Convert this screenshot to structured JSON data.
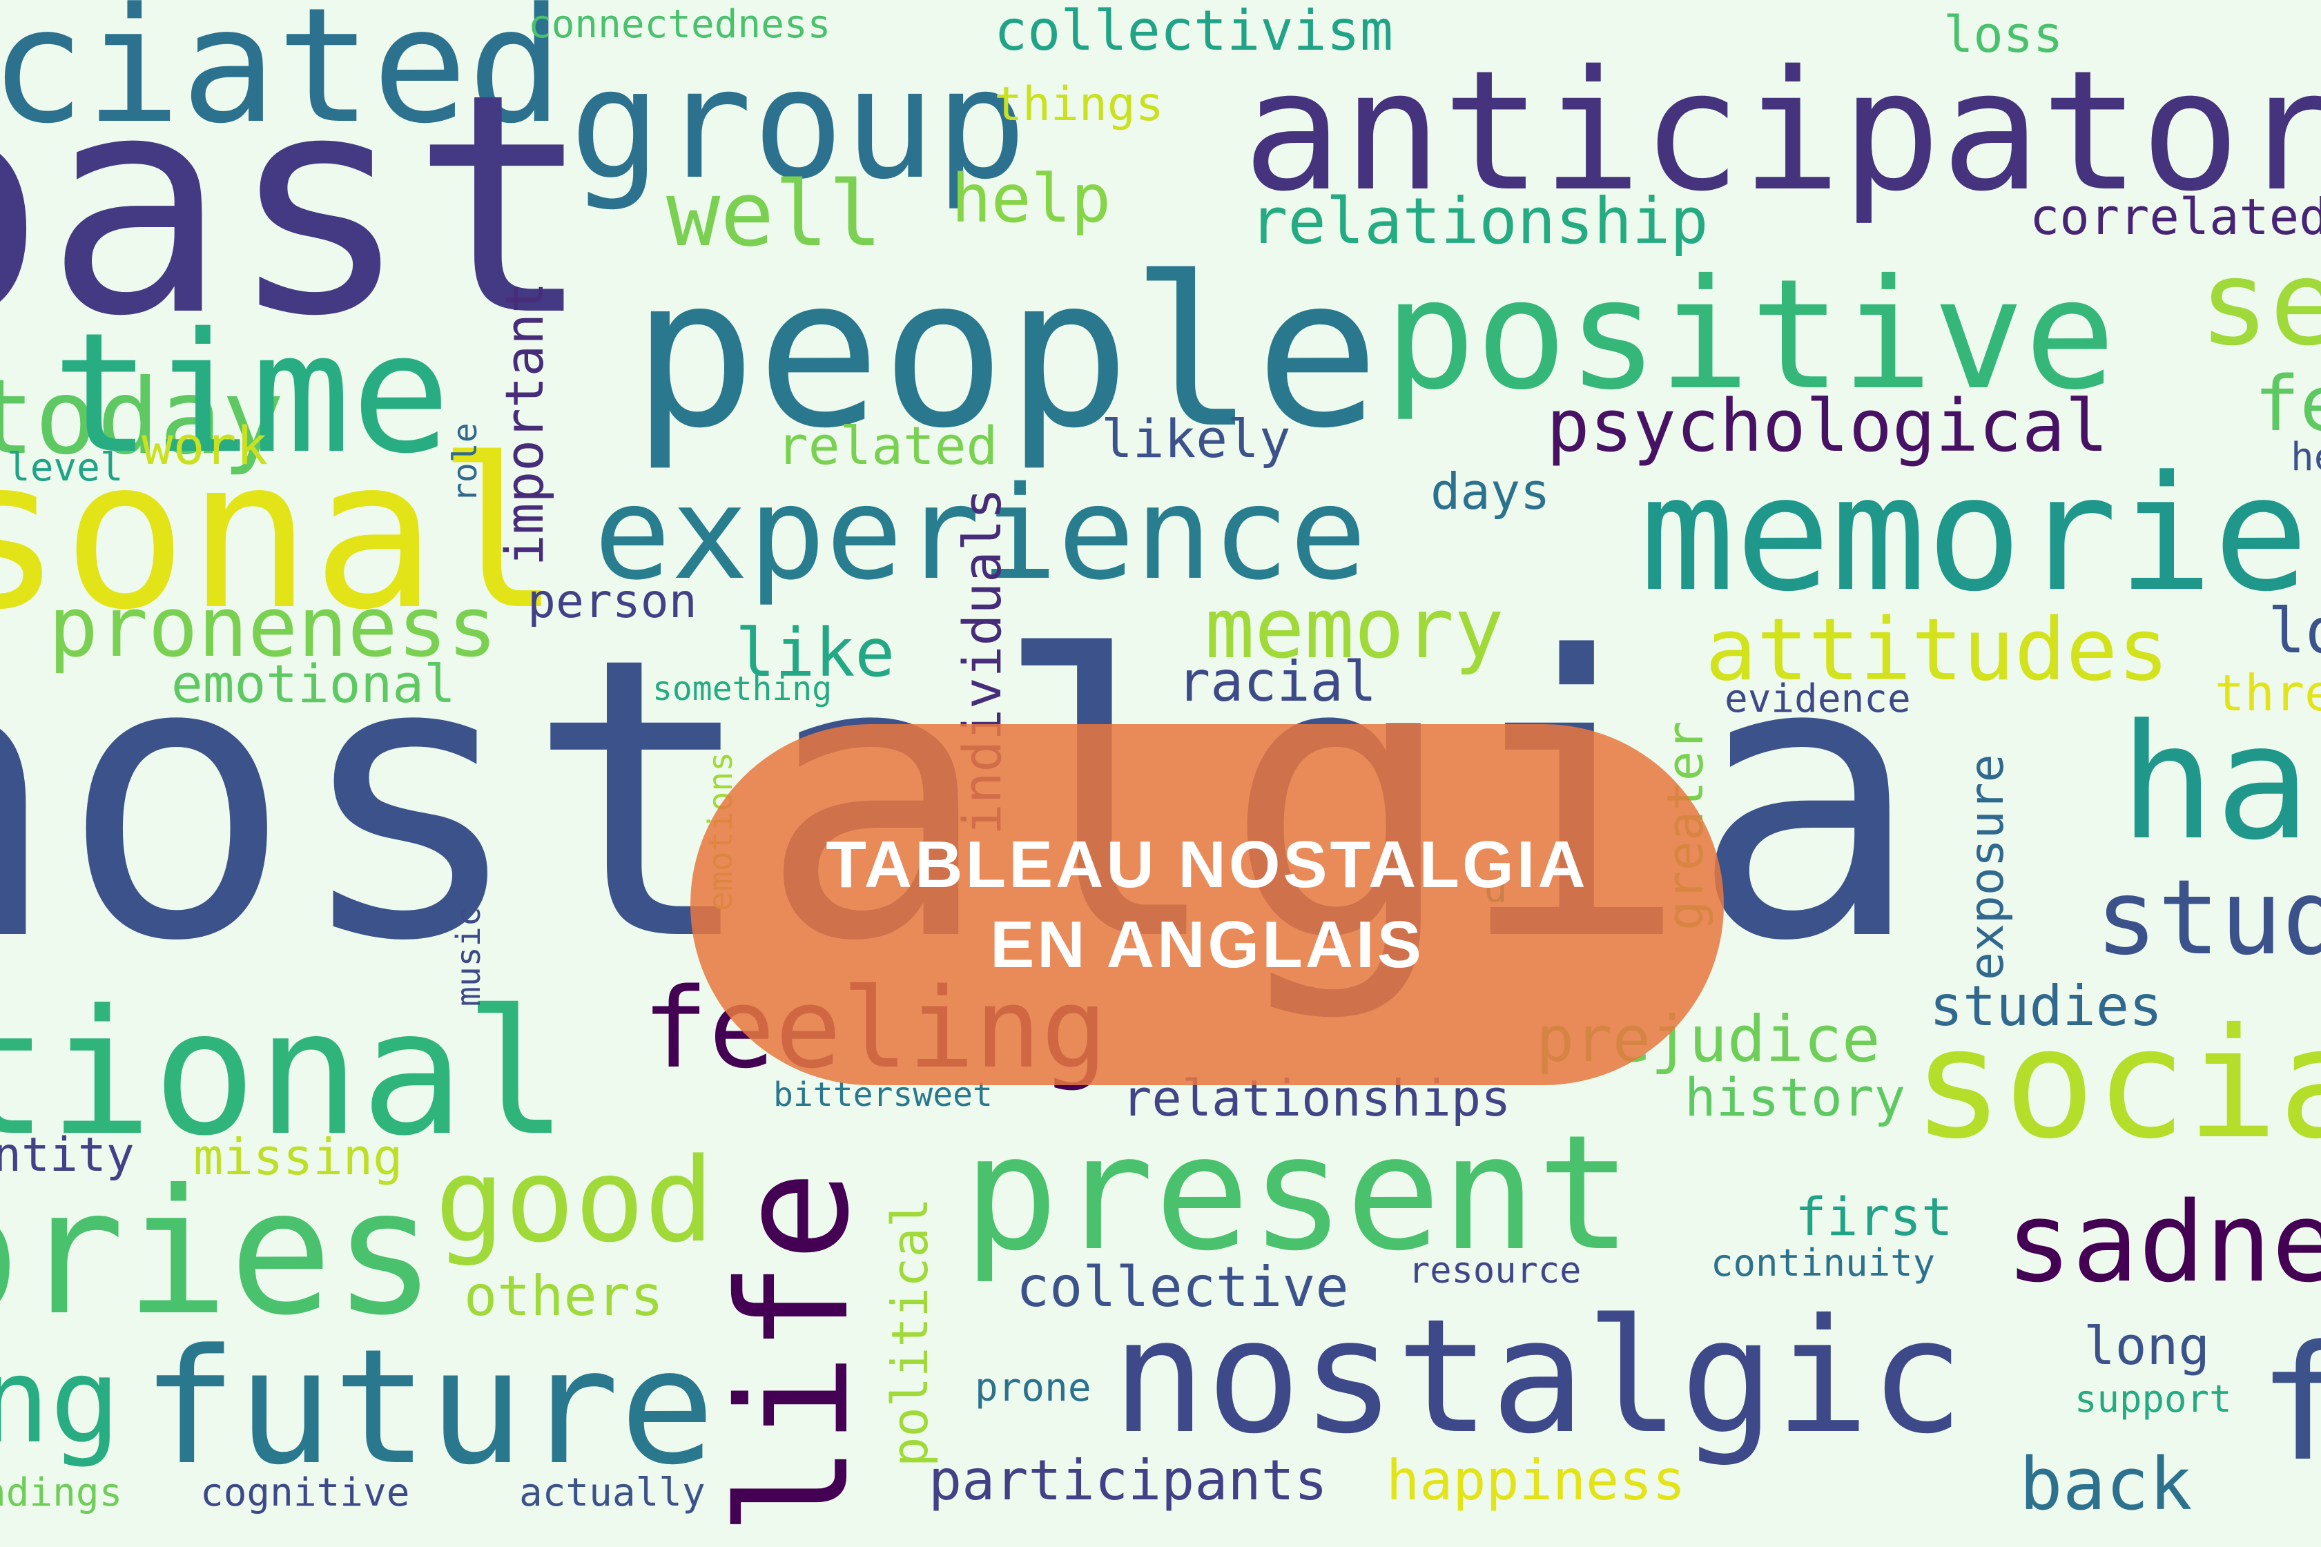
{
  "banner": {
    "line1": "TABLEAU NOSTALGIA",
    "line2": "EN ANGLAIS",
    "color": "#e87840"
  },
  "words": [
    {
      "text": "nostalgia",
      "color": "#3b528b"
    },
    {
      "text": "past",
      "color": "#443983"
    },
    {
      "text": "ciated",
      "color": "#2c728e"
    },
    {
      "text": "anticipatory",
      "color": "#46337e"
    },
    {
      "text": "people",
      "color": "#2a788e"
    },
    {
      "text": "positive",
      "color": "#35b779"
    },
    {
      "text": "time",
      "color": "#27ad81"
    },
    {
      "text": "sonal",
      "color": "#e3e418"
    },
    {
      "text": "experience",
      "color": "#287d8e"
    },
    {
      "text": "memories",
      "color": "#1f988b"
    },
    {
      "text": "group",
      "color": "#2c728e"
    },
    {
      "text": "tional",
      "color": "#2fb47c"
    },
    {
      "text": "ories",
      "color": "#4ac16d"
    },
    {
      "text": "future",
      "color": "#2a788e"
    },
    {
      "text": "present",
      "color": "#4ac16d"
    },
    {
      "text": "nostalgic",
      "color": "#3e4989"
    },
    {
      "text": "life",
      "color": "#440154"
    },
    {
      "text": "social",
      "color": "#b5de2b"
    },
    {
      "text": "happiness",
      "color": "#1f988b"
    },
    {
      "text": "sadness",
      "color": "#440154"
    },
    {
      "text": "feeling",
      "color": "#440154"
    },
    {
      "text": "good",
      "color": "#a0da39"
    },
    {
      "text": "collectivism",
      "color": "#20a386"
    },
    {
      "text": "connectedness",
      "color": "#4ac16d"
    },
    {
      "text": "loss",
      "color": "#4ac16d"
    },
    {
      "text": "things",
      "color": "#cae11f"
    },
    {
      "text": "well",
      "color": "#7ad151"
    },
    {
      "text": "help",
      "color": "#86d549"
    },
    {
      "text": "relationship",
      "color": "#25ab82"
    },
    {
      "text": "correlated",
      "color": "#482475"
    },
    {
      "text": "psychological",
      "color": "#471164"
    },
    {
      "text": "likely",
      "color": "#3b528b"
    },
    {
      "text": "related",
      "color": "#7ad151"
    },
    {
      "text": "work",
      "color": "#cae11f"
    },
    {
      "text": "level",
      "color": "#20a386"
    },
    {
      "text": "role",
      "color": "#31688e"
    },
    {
      "text": "important",
      "color": "#472c7a"
    },
    {
      "text": "days",
      "color": "#2c728e"
    },
    {
      "text": "proneness",
      "color": "#7ad151"
    },
    {
      "text": "emotional",
      "color": "#5ec962"
    },
    {
      "text": "person",
      "color": "#424086"
    },
    {
      "text": "like",
      "color": "#22a884"
    },
    {
      "text": "memory",
      "color": "#a0da39"
    },
    {
      "text": "attitudes",
      "color": "#d2e21b"
    },
    {
      "text": "racial",
      "color": "#3e4989"
    },
    {
      "text": "something",
      "color": "#25ab82"
    },
    {
      "text": "evidence",
      "color": "#3e4989"
    },
    {
      "text": "individuals",
      "color": "#472c7a"
    },
    {
      "text": "emotions",
      "color": "#9fda3a"
    },
    {
      "text": "greater",
      "color": "#7ad151"
    },
    {
      "text": "exposure",
      "color": "#31688e"
    },
    {
      "text": "studies",
      "color": "#31688e"
    },
    {
      "text": "study",
      "color": "#3b528b"
    },
    {
      "text": "prejudice",
      "color": "#6ece58"
    },
    {
      "text": "history",
      "color": "#5ec962"
    },
    {
      "text": "relationships",
      "color": "#414487"
    },
    {
      "text": "bittersweet",
      "color": "#2a788e"
    },
    {
      "text": "missing",
      "color": "#bddf26"
    },
    {
      "text": "ntity",
      "color": "#424086"
    },
    {
      "text": "music",
      "color": "#3e4989"
    },
    {
      "text": "political",
      "color": "#a0da39"
    },
    {
      "text": "collective",
      "color": "#3b528b"
    },
    {
      "text": "resource",
      "color": "#404688"
    },
    {
      "text": "continuity",
      "color": "#2c728e"
    },
    {
      "text": "first",
      "color": "#20a386"
    },
    {
      "text": "others",
      "color": "#9fda3a"
    },
    {
      "text": "ng",
      "color": "#27ad81"
    },
    {
      "text": "prone",
      "color": "#2c728e"
    },
    {
      "text": "long",
      "color": "#3b528b"
    },
    {
      "text": "support",
      "color": "#25ab82"
    },
    {
      "text": "participants",
      "color": "#424086"
    },
    {
      "text": "happiness",
      "color": "#e3e418"
    },
    {
      "text": "back",
      "color": "#2c728e"
    },
    {
      "text": "ndings",
      "color": "#6ece58"
    },
    {
      "text": "cognitive",
      "color": "#3e4989"
    },
    {
      "text": "actually",
      "color": "#3b528b"
    },
    {
      "text": "se",
      "color": "#9fda3a"
    },
    {
      "text": "fe",
      "color": "#5ec962"
    },
    {
      "text": "he",
      "color": "#3b528b"
    },
    {
      "text": "lo",
      "color": "#3b528b"
    },
    {
      "text": "thre",
      "color": "#e3e418"
    },
    {
      "text": "d",
      "color": "#27ad81"
    },
    {
      "text": "today",
      "color": "#5ec962"
    },
    {
      "text": "f",
      "color": "#3b528b"
    }
  ]
}
